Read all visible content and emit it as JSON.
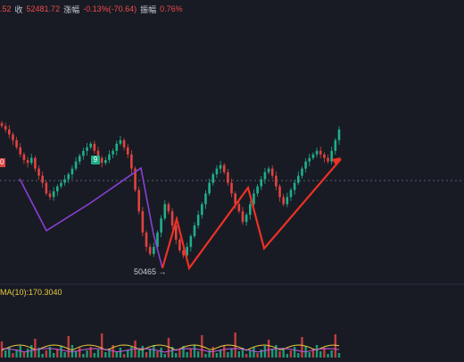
{
  "info": {
    "prefix": ".52",
    "close_label": "收",
    "close_value": "52481.72",
    "change_label": "涨幅",
    "change_value": "-0.13%(-70.64)",
    "amp_label": "振幅",
    "amp_value": "0.76%"
  },
  "annotations": {
    "low_price": "50465",
    "low_arrow": "→",
    "signal_badge": "9",
    "left_badge": "0"
  },
  "indicator": {
    "ma_label": "MA(10):170.3040"
  },
  "colors": {
    "background": "#181b24",
    "up": "#1faf8a",
    "down": "#e0433f",
    "purple_line": "#8a3fd6",
    "red_line": "#ee3124",
    "ma_yellow": "#e8c840"
  },
  "chart_data": {
    "type": "candlestick",
    "note_values": "close path sampled from visible chart",
    "close_series": [
      52300,
      52250,
      52180,
      52100,
      52000,
      51900,
      51820,
      51780,
      51850,
      51700,
      51600,
      51500,
      51350,
      51300,
      51380,
      51450,
      51500,
      51550,
      51620,
      51700,
      51800,
      51880,
      51950,
      52000,
      52050,
      51950,
      51850,
      51780,
      51820,
      51900,
      51950,
      52050,
      52100,
      52000,
      51900,
      51700,
      51400,
      51100,
      50800,
      50600,
      50500,
      50600,
      50800,
      51000,
      51200,
      51100,
      50900,
      50700,
      50550,
      50480,
      50600,
      50750,
      50900,
      51050,
      51200,
      51350,
      51500,
      51620,
      51700,
      51750,
      51650,
      51500,
      51350,
      51200,
      51100,
      50950,
      51050,
      51200,
      51350,
      51450,
      51550,
      51650,
      51700,
      51600,
      51450,
      51300,
      51200,
      51300,
      51400,
      51500,
      51600,
      51700,
      51800,
      51850,
      51900,
      51950,
      51900,
      51850,
      51800,
      51950,
      52100,
      52250
    ]
  }
}
